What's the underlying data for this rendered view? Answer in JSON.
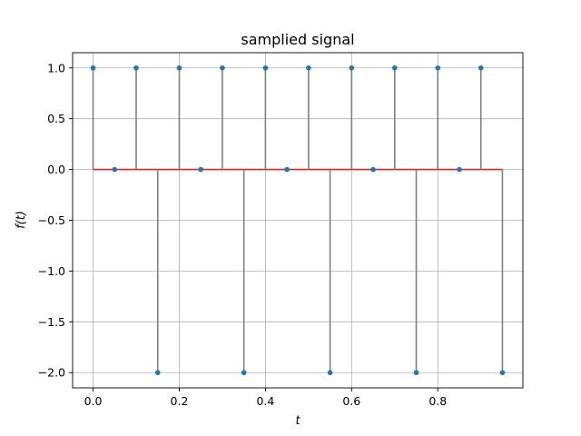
{
  "chart_data": {
    "type": "stem",
    "title": "samplied signal",
    "xlabel": "t",
    "ylabel": "f(t)",
    "xlim": [
      -0.0475,
      0.9975
    ],
    "ylim": [
      -2.15,
      1.15
    ],
    "xticks": [
      0.0,
      0.2,
      0.4,
      0.6,
      0.8
    ],
    "xtick_labels": [
      "0.0",
      "0.2",
      "0.4",
      "0.6",
      "0.8"
    ],
    "yticks": [
      1.0,
      0.5,
      0.0,
      -0.5,
      -1.0,
      -1.5,
      -2.0
    ],
    "ytick_labels": [
      "1.0",
      "0.5",
      "0.0",
      "−0.5",
      "−1.0",
      "−1.5",
      "−2.0"
    ],
    "grid": true,
    "baseline": 0,
    "x": [
      0.0,
      0.05,
      0.1,
      0.15,
      0.2,
      0.25,
      0.3,
      0.35,
      0.4,
      0.45,
      0.5,
      0.55,
      0.6,
      0.65,
      0.7,
      0.75,
      0.8,
      0.85,
      0.9,
      0.95
    ],
    "y": [
      1,
      0,
      1,
      -2,
      1,
      0,
      1,
      -2,
      1,
      0,
      1,
      -2,
      1,
      0,
      1,
      -2,
      1,
      0,
      1,
      -2
    ],
    "colors": {
      "marker": "#1f77b4",
      "stem": "#808080",
      "baseline": "#d62728"
    }
  }
}
